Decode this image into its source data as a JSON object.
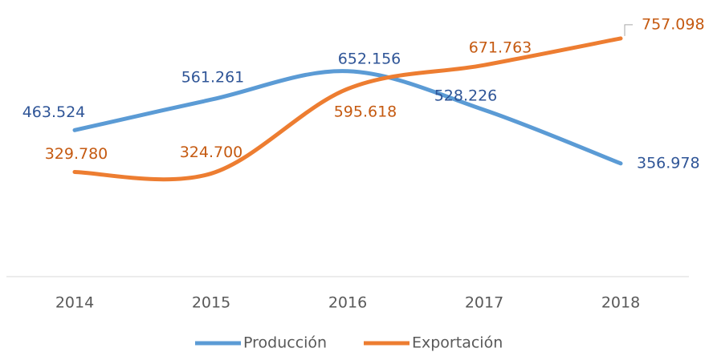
{
  "chart_data": {
    "type": "line",
    "categories": [
      "2014",
      "2015",
      "2016",
      "2017",
      "2018"
    ],
    "series": [
      {
        "name": "Producción",
        "color": "#5b9bd5",
        "label_color": "#2f5597",
        "values": [
          463524,
          561261,
          652156,
          528226,
          356978
        ],
        "value_labels": [
          "463.524",
          "561.261",
          "652.156",
          "528.226",
          "356.978"
        ]
      },
      {
        "name": "Exportación",
        "color": "#ed7d31",
        "label_color": "#c55a11",
        "values": [
          329780,
          324700,
          595618,
          671763,
          757098
        ],
        "value_labels": [
          "329.780",
          "324.700",
          "595.618",
          "671.763",
          "757.098"
        ]
      }
    ],
    "ylim": [
      0,
      880000
    ],
    "smooth": true
  }
}
